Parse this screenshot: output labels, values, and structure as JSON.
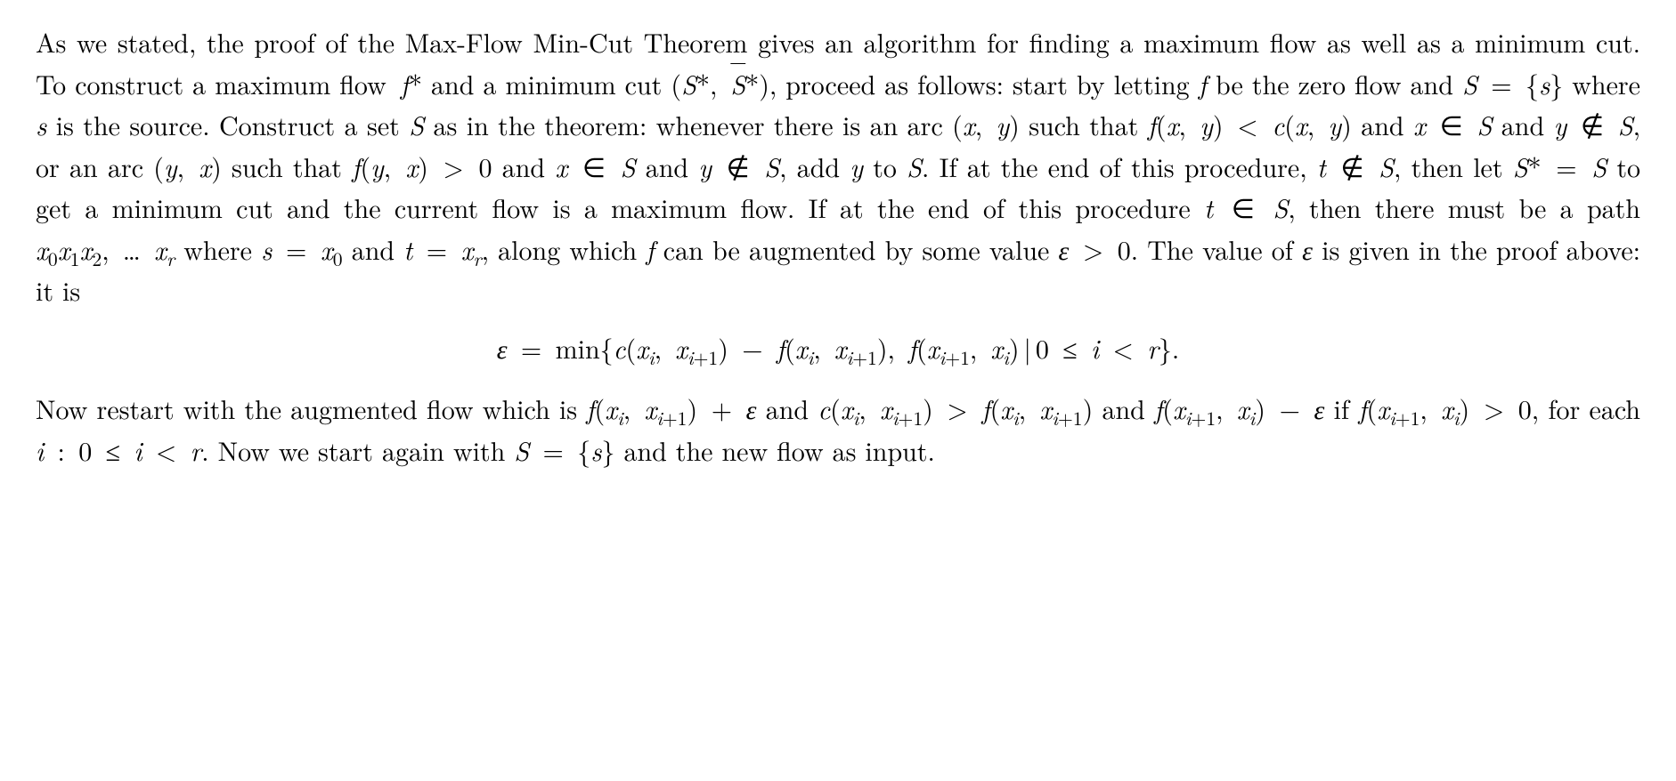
{
  "text_color": "#000000",
  "background_color": "#ffffff",
  "font_size_pt": 22,
  "font_family": "Computer Modern / Latin Modern (serif)",
  "line_height": 1.55,
  "p1_a": "As we stated, the proof of the Max-Flow Min-Cut Theorem gives an algorithm for finding a maximum flow as well as a minimum cut. To construct a maximum flow ",
  "m_fstar": "f*",
  "p1_b": " and a minimum cut ",
  "m_cut": "(S*, S̄*)",
  "p1_c": ", proceed as follows: start by letting ",
  "m_f": "f",
  "p1_d": " be the zero flow and ",
  "m_S_eq_s": "S = {s}",
  "p1_e": " where ",
  "m_s": "s",
  "p1_f": " is the source. Construct a set ",
  "m_S": "S",
  "p1_g": " as in the theorem: whenever there is an arc ",
  "m_xy": "(x, y)",
  "p1_h": " such that ",
  "m_fxy_lt_cxy": "f(x, y) < c(x, y)",
  "p1_i": " and ",
  "m_x_in_S": "x ∈ S",
  "p1_j": " and ",
  "m_y_notin_S": "y ∉ S",
  "p1_k": ", or an arc ",
  "m_yx": "(y, x)",
  "p1_l": " such that ",
  "m_fyx_gt_0": "f(y, x) > 0",
  "p1_m": " and ",
  "p1_n": " and ",
  "p1_o": ", add ",
  "m_y": "y",
  "p1_p": " to ",
  "p1_q": ". If at the end of this procedure, ",
  "m_t_notin_S": "t ∉ S",
  "p1_r": ", then let ",
  "m_Sstar_eq_S": "S* = S",
  "p1_s": " to get a minimum cut and the current flow is a maximum flow. If at the end of this procedure ",
  "m_t_in_S": "t ∈ S",
  "p1_t": ", then there must be a path ",
  "m_path": "x₀x₁x₂, … xᵣ",
  "p1_u": " where ",
  "m_s_eq_x0": "s = x₀",
  "p1_v": " and ",
  "m_t_eq_xr": "t = xᵣ",
  "p1_w": ", along which ",
  "p1_x": " can be augmented by some value ",
  "m_eps_gt_0": "ε > 0",
  "p1_y": ". The value of ",
  "m_eps": "ε",
  "p1_z": " is given in the proof above: it is",
  "display_eq": "ε = min{c(xᵢ, xᵢ₊₁) − f(xᵢ, xᵢ₊₁), f(xᵢ₊₁, xᵢ) | 0 ≤ i < r}.",
  "p2_a": "Now restart with the augmented flow which is ",
  "m_aug1": "f(xᵢ, xᵢ₊₁) + ε",
  "p2_b": " and ",
  "m_aug2": "c(xᵢ, xᵢ₊₁) > f(xᵢ, xᵢ₊₁)",
  "p2_c": " and ",
  "m_aug3": "f(xᵢ₊₁, xᵢ) − ε",
  "p2_d": " if ",
  "m_aug4": "f(xᵢ₊₁, xᵢ) > 0",
  "p2_e": ", for each ",
  "m_irange": "i : 0 ≤ i < r",
  "p2_f": ". Now we start again with ",
  "p2_g": " and the new flow as input."
}
